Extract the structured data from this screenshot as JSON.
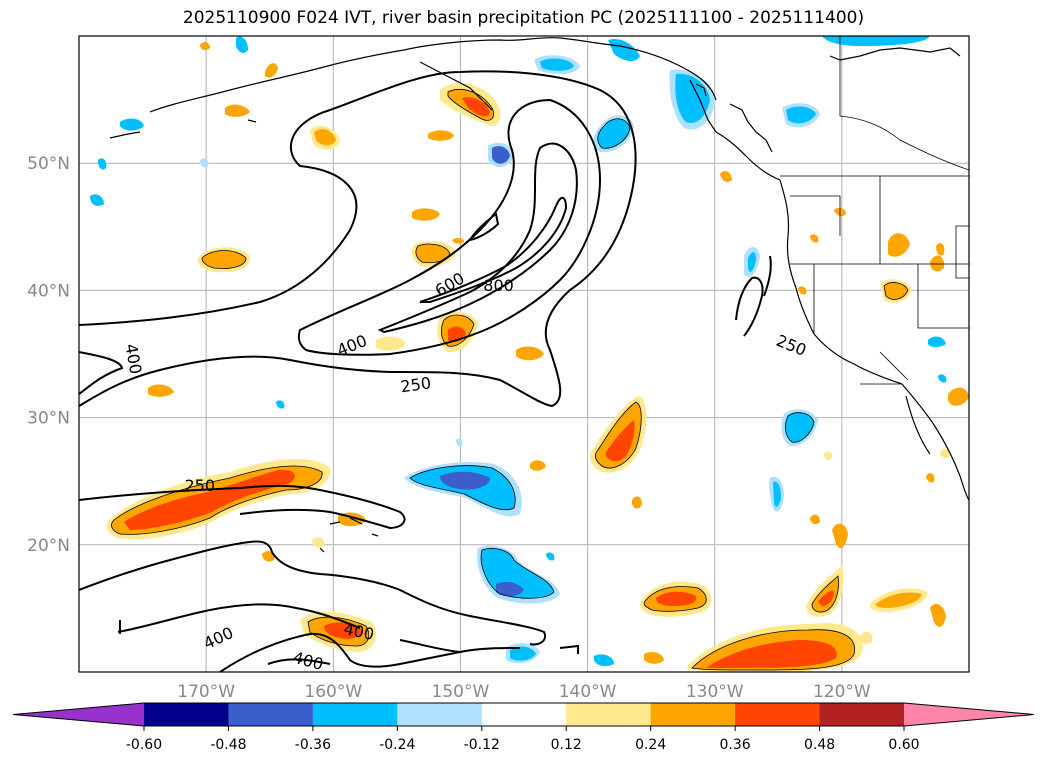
{
  "title": "2025110900 F024 IVT, river basin precipitation PC (2025111100 - 2025111400)",
  "map": {
    "projection": "plate-carree",
    "lon_range": [
      -180,
      -110
    ],
    "lat_range": [
      10,
      60
    ],
    "gridlines": true,
    "lon_ticks": [
      {
        "lon": -170,
        "label": "170°W"
      },
      {
        "lon": -160,
        "label": "160°W"
      },
      {
        "lon": -150,
        "label": "150°W"
      },
      {
        "lon": -140,
        "label": "140°W"
      },
      {
        "lon": -130,
        "label": "130°W"
      },
      {
        "lon": -120,
        "label": "120°W"
      }
    ],
    "lat_ticks": [
      {
        "lat": 20,
        "label": "20°N"
      },
      {
        "lat": 30,
        "label": "30°N"
      },
      {
        "lat": 40,
        "label": "40°N"
      },
      {
        "lat": 50,
        "label": "50°N"
      }
    ],
    "colors": {
      "gridline": "#b0b0b0",
      "coast": "#000000",
      "ivt_contour": "#000000",
      "tick_label": "#888888"
    }
  },
  "ivt_contour_labels": [
    {
      "text": "250",
      "lon": -153.5,
      "lat": 32.5,
      "angle": -8
    },
    {
      "text": "250",
      "lon": -170.5,
      "lat": 24.6,
      "angle": 0
    },
    {
      "text": "250",
      "lon": -124.0,
      "lat": 35.6,
      "angle": 22
    },
    {
      "text": "400",
      "lon": -175.8,
      "lat": 34.6,
      "angle": 80
    },
    {
      "text": "400",
      "lon": -158.5,
      "lat": 35.6,
      "angle": -22
    },
    {
      "text": "400",
      "lon": -169.0,
      "lat": 12.6,
      "angle": -25
    },
    {
      "text": "400",
      "lon": -158.0,
      "lat": 13.1,
      "angle": 12
    },
    {
      "text": "400",
      "lon": -162.0,
      "lat": 10.8,
      "angle": 15
    },
    {
      "text": "600",
      "lon": -150.8,
      "lat": 40.4,
      "angle": -30
    },
    {
      "text": "800",
      "lon": -147.0,
      "lat": 40.3,
      "angle": 0
    }
  ],
  "colorbar": {
    "ticks": [
      "-0.60",
      "-0.48",
      "-0.36",
      "-0.24",
      "-0.12",
      "0.12",
      "0.24",
      "0.36",
      "0.48",
      "0.60"
    ],
    "boundaries": [
      -0.6,
      -0.48,
      -0.36,
      -0.24,
      -0.12,
      0.12,
      0.24,
      0.36,
      0.48,
      0.6
    ],
    "colors": [
      "#9932cc",
      "#00008b",
      "#3a5fcd",
      "#00bfff",
      "#ade1ff",
      "#ffffff",
      "#ffe98c",
      "#ffa500",
      "#ff4500",
      "#b22222",
      "#ff85a9"
    ],
    "extend": "both"
  }
}
